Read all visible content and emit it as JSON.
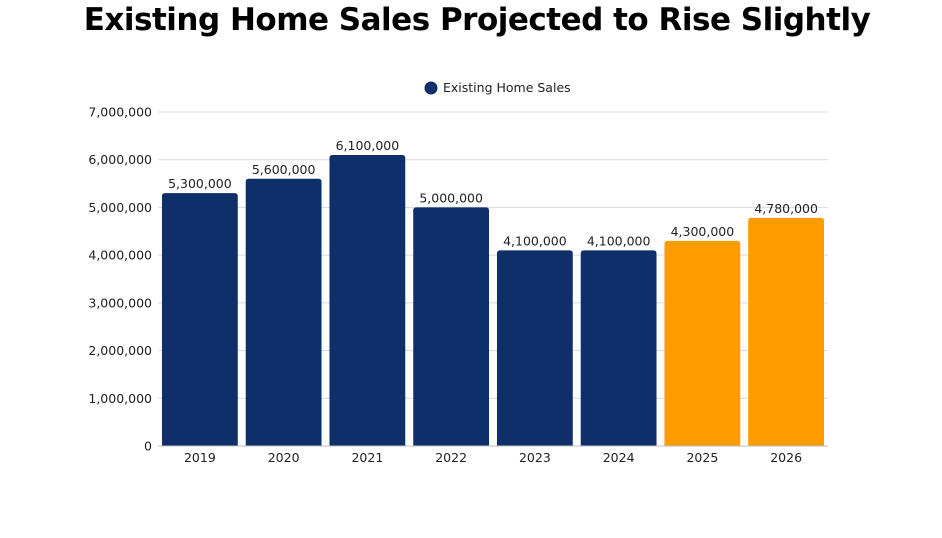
{
  "chart_data": {
    "type": "bar",
    "title": "Existing Home Sales Projected to Rise Slightly",
    "xlabel": "",
    "ylabel": "",
    "categories": [
      "2019",
      "2020",
      "2021",
      "2022",
      "2023",
      "2024",
      "2025",
      "2026"
    ],
    "series": [
      {
        "name": "Existing Home Sales",
        "values": [
          5300000,
          5600000,
          6100000,
          5000000,
          4100000,
          4100000,
          4300000,
          4780000
        ],
        "data_labels": [
          "5,300,000",
          "5,600,000",
          "6,100,000",
          "5,000,000",
          "4,100,000",
          "4,100,000",
          "4,300,000",
          "4,780,000"
        ],
        "colors": [
          "#0f2f6b",
          "#0f2f6b",
          "#0f2f6b",
          "#0f2f6b",
          "#0f2f6b",
          "#0f2f6b",
          "#ff9c00",
          "#ff9c00"
        ]
      }
    ],
    "ylim": [
      0,
      7000000
    ],
    "yticks": [
      0,
      1000000,
      2000000,
      3000000,
      4000000,
      5000000,
      6000000,
      7000000
    ],
    "ytick_labels": [
      "0",
      "1,000,000",
      "2,000,000",
      "3,000,000",
      "4,000,000",
      "5,000,000",
      "6,000,000",
      "7,000,000"
    ],
    "legend_position": "top",
    "grid": true,
    "colors": {
      "primary": "#0f2f6b",
      "projected": "#ff9c00",
      "grid": "#d9d9d9",
      "legend_marker": "#0f2f6b"
    }
  }
}
